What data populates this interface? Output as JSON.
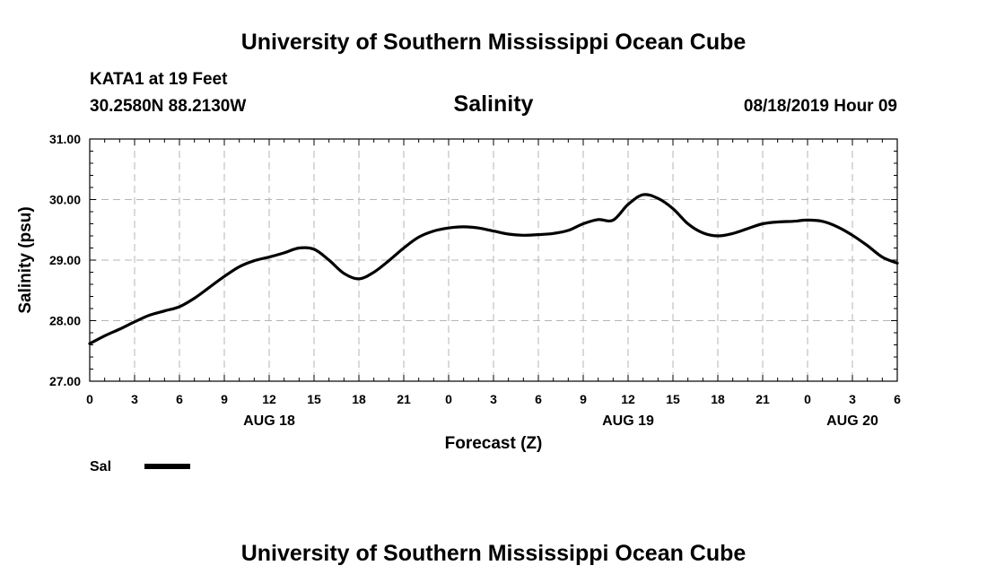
{
  "header": {
    "title": "University of Southern Mississippi Ocean Cube",
    "station": "KATA1 at 19 Feet",
    "coords": "30.2580N 88.2130W",
    "datetime": "08/18/2019 Hour 09",
    "footer": "University of Southern Mississippi Ocean Cube"
  },
  "chart_data": {
    "type": "line",
    "title": "Salinity",
    "xlabel": "Forecast (Z)",
    "ylabel": "Salinity (psu)",
    "ylim": [
      27.0,
      31.0
    ],
    "xlim": [
      0,
      54
    ],
    "grid": true,
    "x_unit": "hours since AUG 18 00Z",
    "y_ticks": [
      "27.00",
      "28.00",
      "29.00",
      "30.00",
      "31.00"
    ],
    "y_tick_values": [
      27,
      28,
      29,
      30,
      31
    ],
    "x_tick_hours": [
      0,
      3,
      6,
      9,
      12,
      15,
      18,
      21,
      24,
      27,
      30,
      33,
      36,
      39,
      42,
      45,
      48,
      51,
      54
    ],
    "x_tick_labels": [
      "0",
      "3",
      "6",
      "9",
      "12",
      "15",
      "18",
      "21",
      "0",
      "3",
      "6",
      "9",
      "12",
      "15",
      "18",
      "21",
      "0",
      "3",
      "6"
    ],
    "date_labels": [
      {
        "label": "AUG 18",
        "hour": 12
      },
      {
        "label": "AUG 19",
        "hour": 36
      },
      {
        "label": "AUG 20",
        "hour": 51
      }
    ],
    "legend": {
      "location": "bottom-left",
      "entries": [
        "Sal"
      ]
    },
    "series": [
      {
        "name": "Sal",
        "color": "#000000",
        "x": [
          0,
          1,
          2,
          3,
          4,
          5,
          6,
          7,
          8,
          9,
          10,
          11,
          12,
          13,
          14,
          15,
          16,
          17,
          18,
          19,
          20,
          21,
          22,
          23,
          24,
          25,
          26,
          27,
          28,
          29,
          30,
          31,
          32,
          33,
          34,
          35,
          36,
          37,
          38,
          39,
          40,
          41,
          42,
          43,
          44,
          45,
          46,
          47,
          48,
          49,
          50,
          51,
          52,
          53,
          54
        ],
        "values": [
          27.62,
          27.75,
          27.86,
          27.98,
          28.09,
          28.16,
          28.23,
          28.37,
          28.55,
          28.73,
          28.89,
          28.99,
          29.05,
          29.12,
          29.2,
          29.18,
          29.0,
          28.78,
          28.69,
          28.8,
          28.99,
          29.2,
          29.38,
          29.48,
          29.53,
          29.55,
          29.53,
          29.48,
          29.43,
          29.41,
          29.42,
          29.44,
          29.49,
          29.6,
          29.67,
          29.66,
          29.92,
          30.08,
          30.02,
          29.85,
          29.6,
          29.45,
          29.4,
          29.44,
          29.52,
          29.6,
          29.63,
          29.64,
          29.66,
          29.64,
          29.55,
          29.41,
          29.24,
          29.05,
          28.95
        ]
      }
    ]
  }
}
